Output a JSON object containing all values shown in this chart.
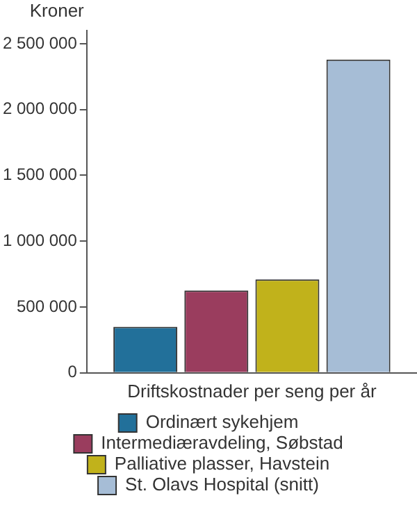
{
  "chart_data": {
    "type": "bar",
    "ylabel": "Kroner",
    "xlabel": "Driftskostnader per seng per år",
    "categories": [
      null
    ],
    "series": [
      {
        "name": "Ordinært sykehjem",
        "color": "#22709a",
        "values": [
          350000
        ]
      },
      {
        "name": "Intermediæravdeling, Søbstad",
        "color": "#9a3d5e",
        "values": [
          625000
        ]
      },
      {
        "name": "Palliative plasser, Havstein",
        "color": "#c1b21b",
        "values": [
          710000
        ]
      },
      {
        "name": "St. Olavs Hospital (snitt)",
        "color": "#a6bdd6",
        "values": [
          2380000
        ]
      }
    ],
    "ylim": [
      0,
      2600000
    ],
    "yticks": [
      {
        "value": 0,
        "label": "0"
      },
      {
        "value": 500000,
        "label": "500 000"
      },
      {
        "value": 1000000,
        "label": "1 000 000"
      },
      {
        "value": 1500000,
        "label": "1 500 000"
      },
      {
        "value": 2000000,
        "label": "2 000 000"
      },
      {
        "value": 2500000,
        "label": "2 500 000"
      }
    ],
    "grid": false,
    "legend": "bottom"
  }
}
